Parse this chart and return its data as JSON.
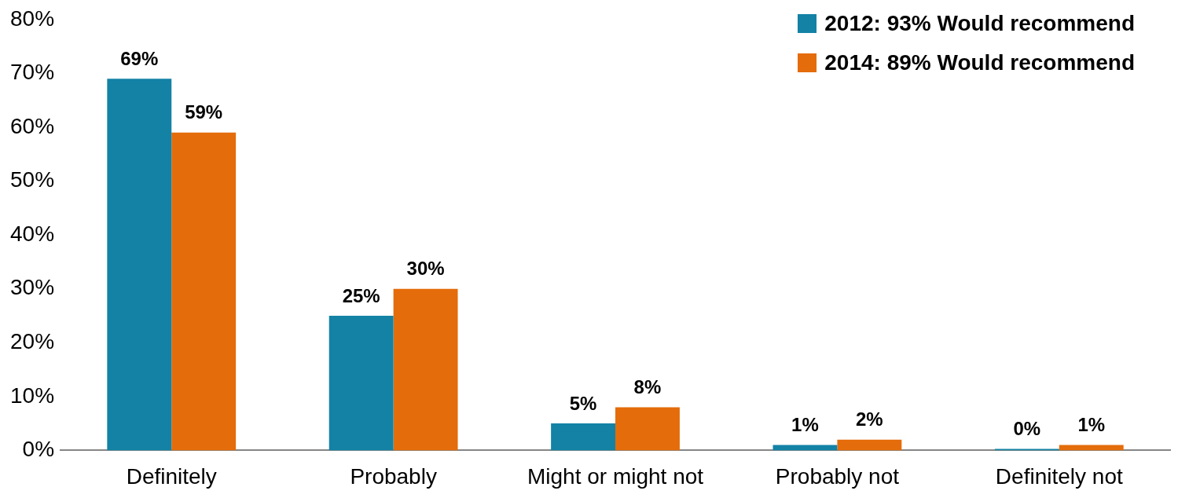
{
  "chart_data": {
    "type": "bar",
    "categories": [
      "Definitely",
      "Probably",
      "Might or might not",
      "Probably not",
      "Definitely not"
    ],
    "series": [
      {
        "name": "2012: 93% Would recommend",
        "color": "#1382a5",
        "values": [
          69,
          25,
          5,
          1,
          0
        ],
        "value_labels": [
          "69%",
          "25%",
          "5%",
          "1%",
          "0%"
        ]
      },
      {
        "name": "2014: 89% Would recommend",
        "color": "#e46c0a",
        "values": [
          59,
          30,
          8,
          2,
          1
        ],
        "value_labels": [
          "59%",
          "30%",
          "8%",
          "2%",
          "1%"
        ]
      }
    ],
    "ylim": [
      0,
      80
    ],
    "yticks": [
      {
        "value": 0,
        "label": "0%"
      },
      {
        "value": 10,
        "label": "10%"
      },
      {
        "value": 20,
        "label": "20%"
      },
      {
        "value": 30,
        "label": "30%"
      },
      {
        "value": 40,
        "label": "40%"
      },
      {
        "value": 50,
        "label": "50%"
      },
      {
        "value": 60,
        "label": "60%"
      },
      {
        "value": 70,
        "label": "70%"
      },
      {
        "value": 80,
        "label": "80%"
      }
    ],
    "grid": false,
    "legend": "top right"
  }
}
